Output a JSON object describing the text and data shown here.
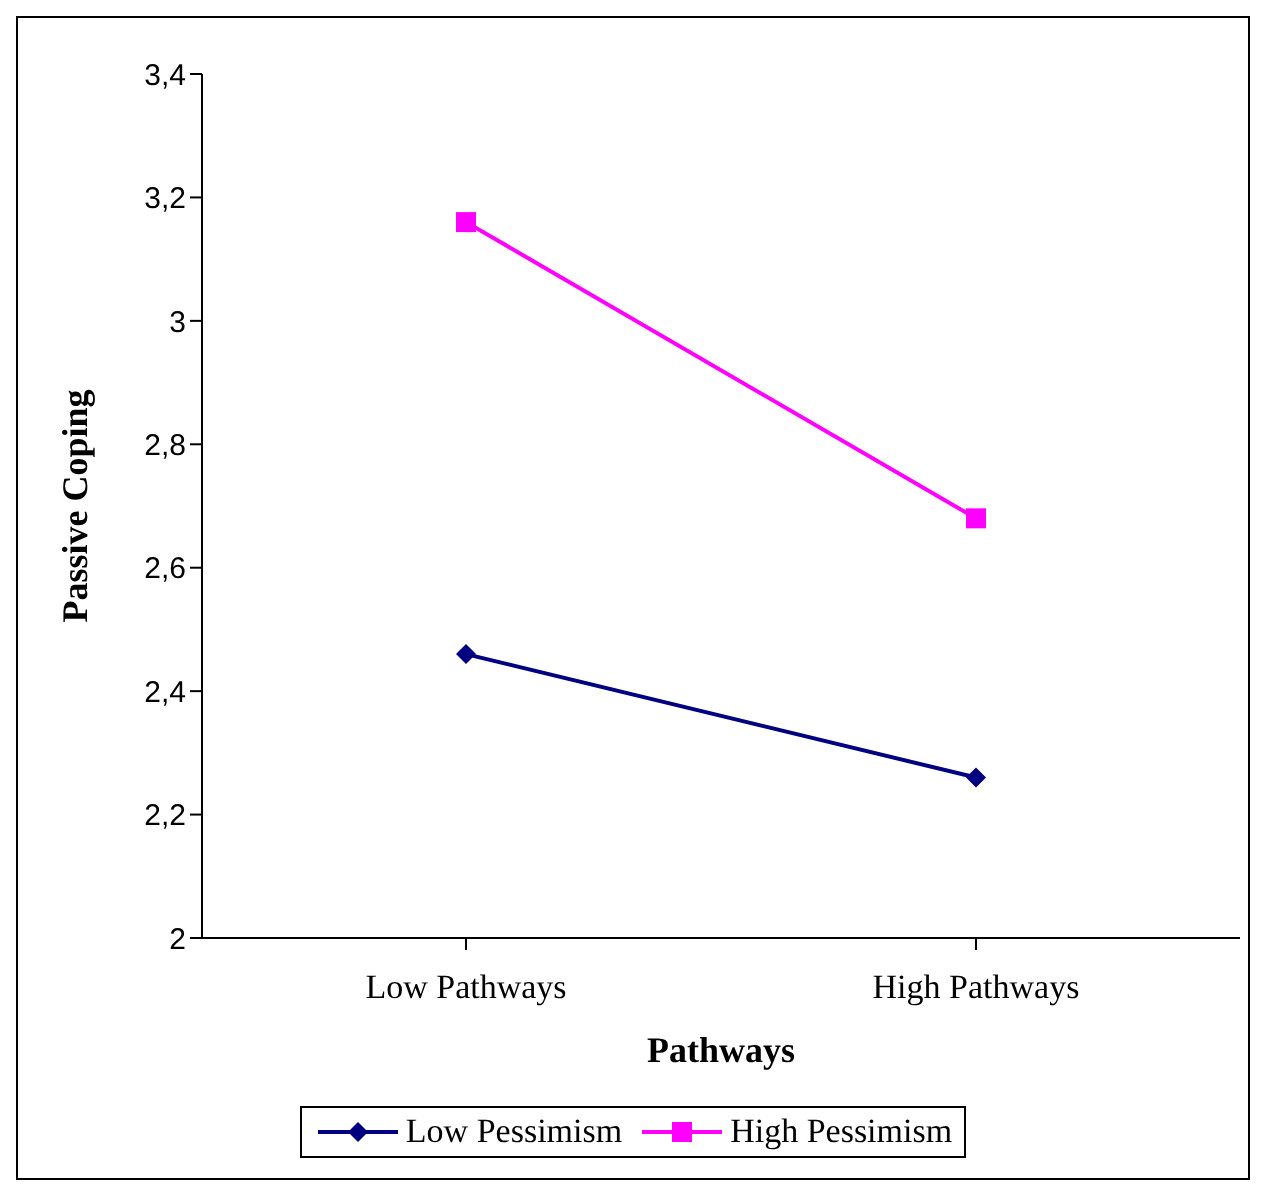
{
  "chart_data": {
    "type": "line",
    "xlabel": "Pathways",
    "ylabel": "Passive Coping",
    "categories": [
      "Low Pathways",
      "High Pathways"
    ],
    "series": [
      {
        "name": "Low Pessimism",
        "color": "#000080",
        "values": [
          2.46,
          2.26
        ],
        "marker": "diamond"
      },
      {
        "name": "High Pessimism",
        "color": "#ff00ff",
        "values": [
          3.16,
          2.68
        ],
        "marker": "square"
      }
    ],
    "ylim": [
      2,
      3.4
    ],
    "yticks": [
      2,
      {
        "value": 2.2,
        "label": "2,2"
      },
      {
        "value": 2.4,
        "label": "2,4"
      },
      {
        "value": 2.6,
        "label": "2,6"
      },
      {
        "value": 2.8,
        "label": "2,8"
      },
      3,
      {
        "value": 3.2,
        "label": "3,2"
      },
      {
        "value": 3.4,
        "label": "3,4"
      }
    ],
    "grid": false,
    "legend": "bottom",
    "line_style": "solid"
  }
}
